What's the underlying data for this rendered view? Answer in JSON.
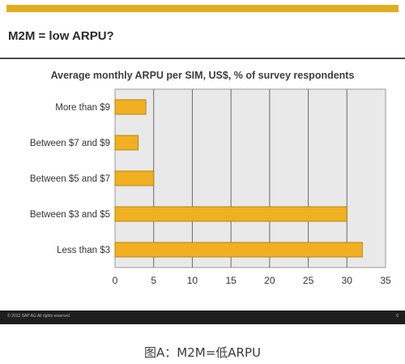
{
  "slide": {
    "title": "M2M = low ARPU?",
    "footer_text": "© 2012 SAP AG All rights reserved",
    "page_number": "6"
  },
  "caption": "图A：M2M=低ARPU",
  "colors": {
    "accent": "#e2ad1e",
    "bar_fill": "#f0b021",
    "plot_bg": "#e9e9e9",
    "footer_bg": "#1e1e1e"
  },
  "chart_data": {
    "type": "bar",
    "orientation": "horizontal",
    "title": "Average monthly ARPU per SIM, US$, % of survey respondents",
    "categories": [
      "More than $9",
      "Between $7 and $9",
      "Between $5 and $7",
      "Between $3 and $5",
      "Less than $3"
    ],
    "values": [
      4,
      3,
      5,
      30,
      32
    ],
    "xlim": [
      0,
      35
    ],
    "xticks": [
      0,
      5,
      10,
      15,
      20,
      25,
      30,
      35
    ],
    "grid": true,
    "legend": "none"
  }
}
